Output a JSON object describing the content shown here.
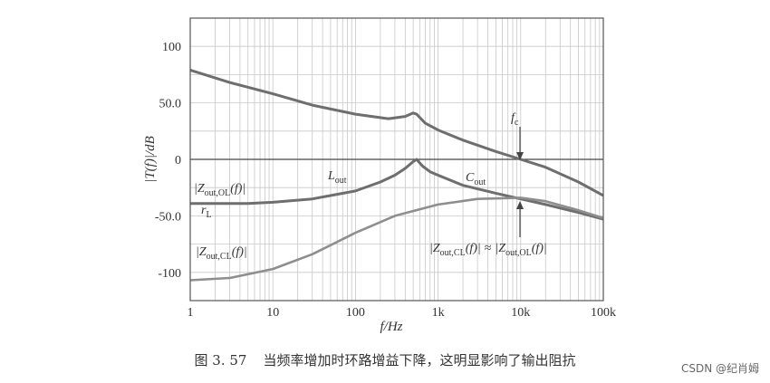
{
  "chart_data": {
    "type": "line",
    "x_scale": "log",
    "xlim": [
      1,
      100000
    ],
    "ylim": [
      -125,
      125
    ],
    "xlabel": "f/Hz",
    "ylabel": "|T(f)|/dB",
    "x_ticks": [
      {
        "value": 1,
        "label": "1"
      },
      {
        "value": 10,
        "label": "10"
      },
      {
        "value": 100,
        "label": "100"
      },
      {
        "value": 1000,
        "label": "1k"
      },
      {
        "value": 10000,
        "label": "10k"
      },
      {
        "value": 100000,
        "label": "100k"
      }
    ],
    "y_ticks": [
      {
        "value": 100,
        "label": "100"
      },
      {
        "value": 50,
        "label": "50.0"
      },
      {
        "value": 0,
        "label": "0"
      },
      {
        "value": -50,
        "label": "-50.0"
      },
      {
        "value": -100,
        "label": "-100"
      }
    ],
    "grid": true,
    "series": [
      {
        "color": "#6e6e6e",
        "points": [
          [
            1,
            79
          ],
          [
            3,
            68
          ],
          [
            10,
            58
          ],
          [
            30,
            48
          ],
          [
            100,
            40
          ],
          [
            250,
            36
          ],
          [
            400,
            38
          ],
          [
            500,
            41
          ],
          [
            550,
            40
          ],
          [
            700,
            32
          ],
          [
            1000,
            26
          ],
          [
            2000,
            17
          ],
          [
            5000,
            7
          ],
          [
            10000,
            0
          ],
          [
            20000,
            -7
          ],
          [
            50000,
            -20
          ],
          [
            100000,
            -32
          ]
        ]
      },
      {
        "color": "#6e6e6e",
        "points": [
          [
            1,
            -39
          ],
          [
            5,
            -39
          ],
          [
            10,
            -38
          ],
          [
            30,
            -35
          ],
          [
            100,
            -28
          ],
          [
            200,
            -20
          ],
          [
            300,
            -14
          ],
          [
            400,
            -8
          ],
          [
            500,
            -2
          ],
          [
            550,
            0
          ],
          [
            650,
            -6
          ],
          [
            800,
            -11
          ],
          [
            1000,
            -14
          ],
          [
            2000,
            -23
          ],
          [
            5000,
            -30
          ],
          [
            10000,
            -35
          ],
          [
            20000,
            -40
          ],
          [
            50000,
            -47
          ],
          [
            100000,
            -53
          ]
        ]
      },
      {
        "color": "#8e8e8e",
        "points": [
          [
            1,
            -107
          ],
          [
            3,
            -105
          ],
          [
            10,
            -97
          ],
          [
            30,
            -84
          ],
          [
            100,
            -65
          ],
          [
            300,
            -50
          ],
          [
            1000,
            -40
          ],
          [
            3000,
            -35
          ],
          [
            10000,
            -34
          ],
          [
            20000,
            -37
          ],
          [
            50000,
            -45
          ],
          [
            100000,
            -52
          ]
        ]
      }
    ],
    "annotations": {
      "fc": {
        "main": "f",
        "sub": "c",
        "x": 10000,
        "y": 0
      },
      "lout": {
        "main": "L",
        "sub": "out"
      },
      "cout": {
        "main": "C",
        "sub": "out"
      },
      "rl": {
        "main": "r",
        "sub": "L"
      },
      "zol": {
        "open": "|Z",
        "sub": "out,OL",
        "close": "(f)|"
      },
      "zcl": {
        "open": "|Z",
        "sub": "out,CL",
        "close": "(f)|"
      },
      "approx": {
        "left_open": "|Z",
        "left_sub": "out,CL",
        "left_close": "(f)|",
        "op": "≈",
        "right_open": "|Z",
        "right_sub": "out,OL",
        "right_close": "(f)|"
      }
    }
  },
  "caption": {
    "number": "图 3. 57",
    "text": "当频率增加时环路增益下降，这明显影响了输出阻抗"
  },
  "watermark": "CSDN @纪肖姆"
}
